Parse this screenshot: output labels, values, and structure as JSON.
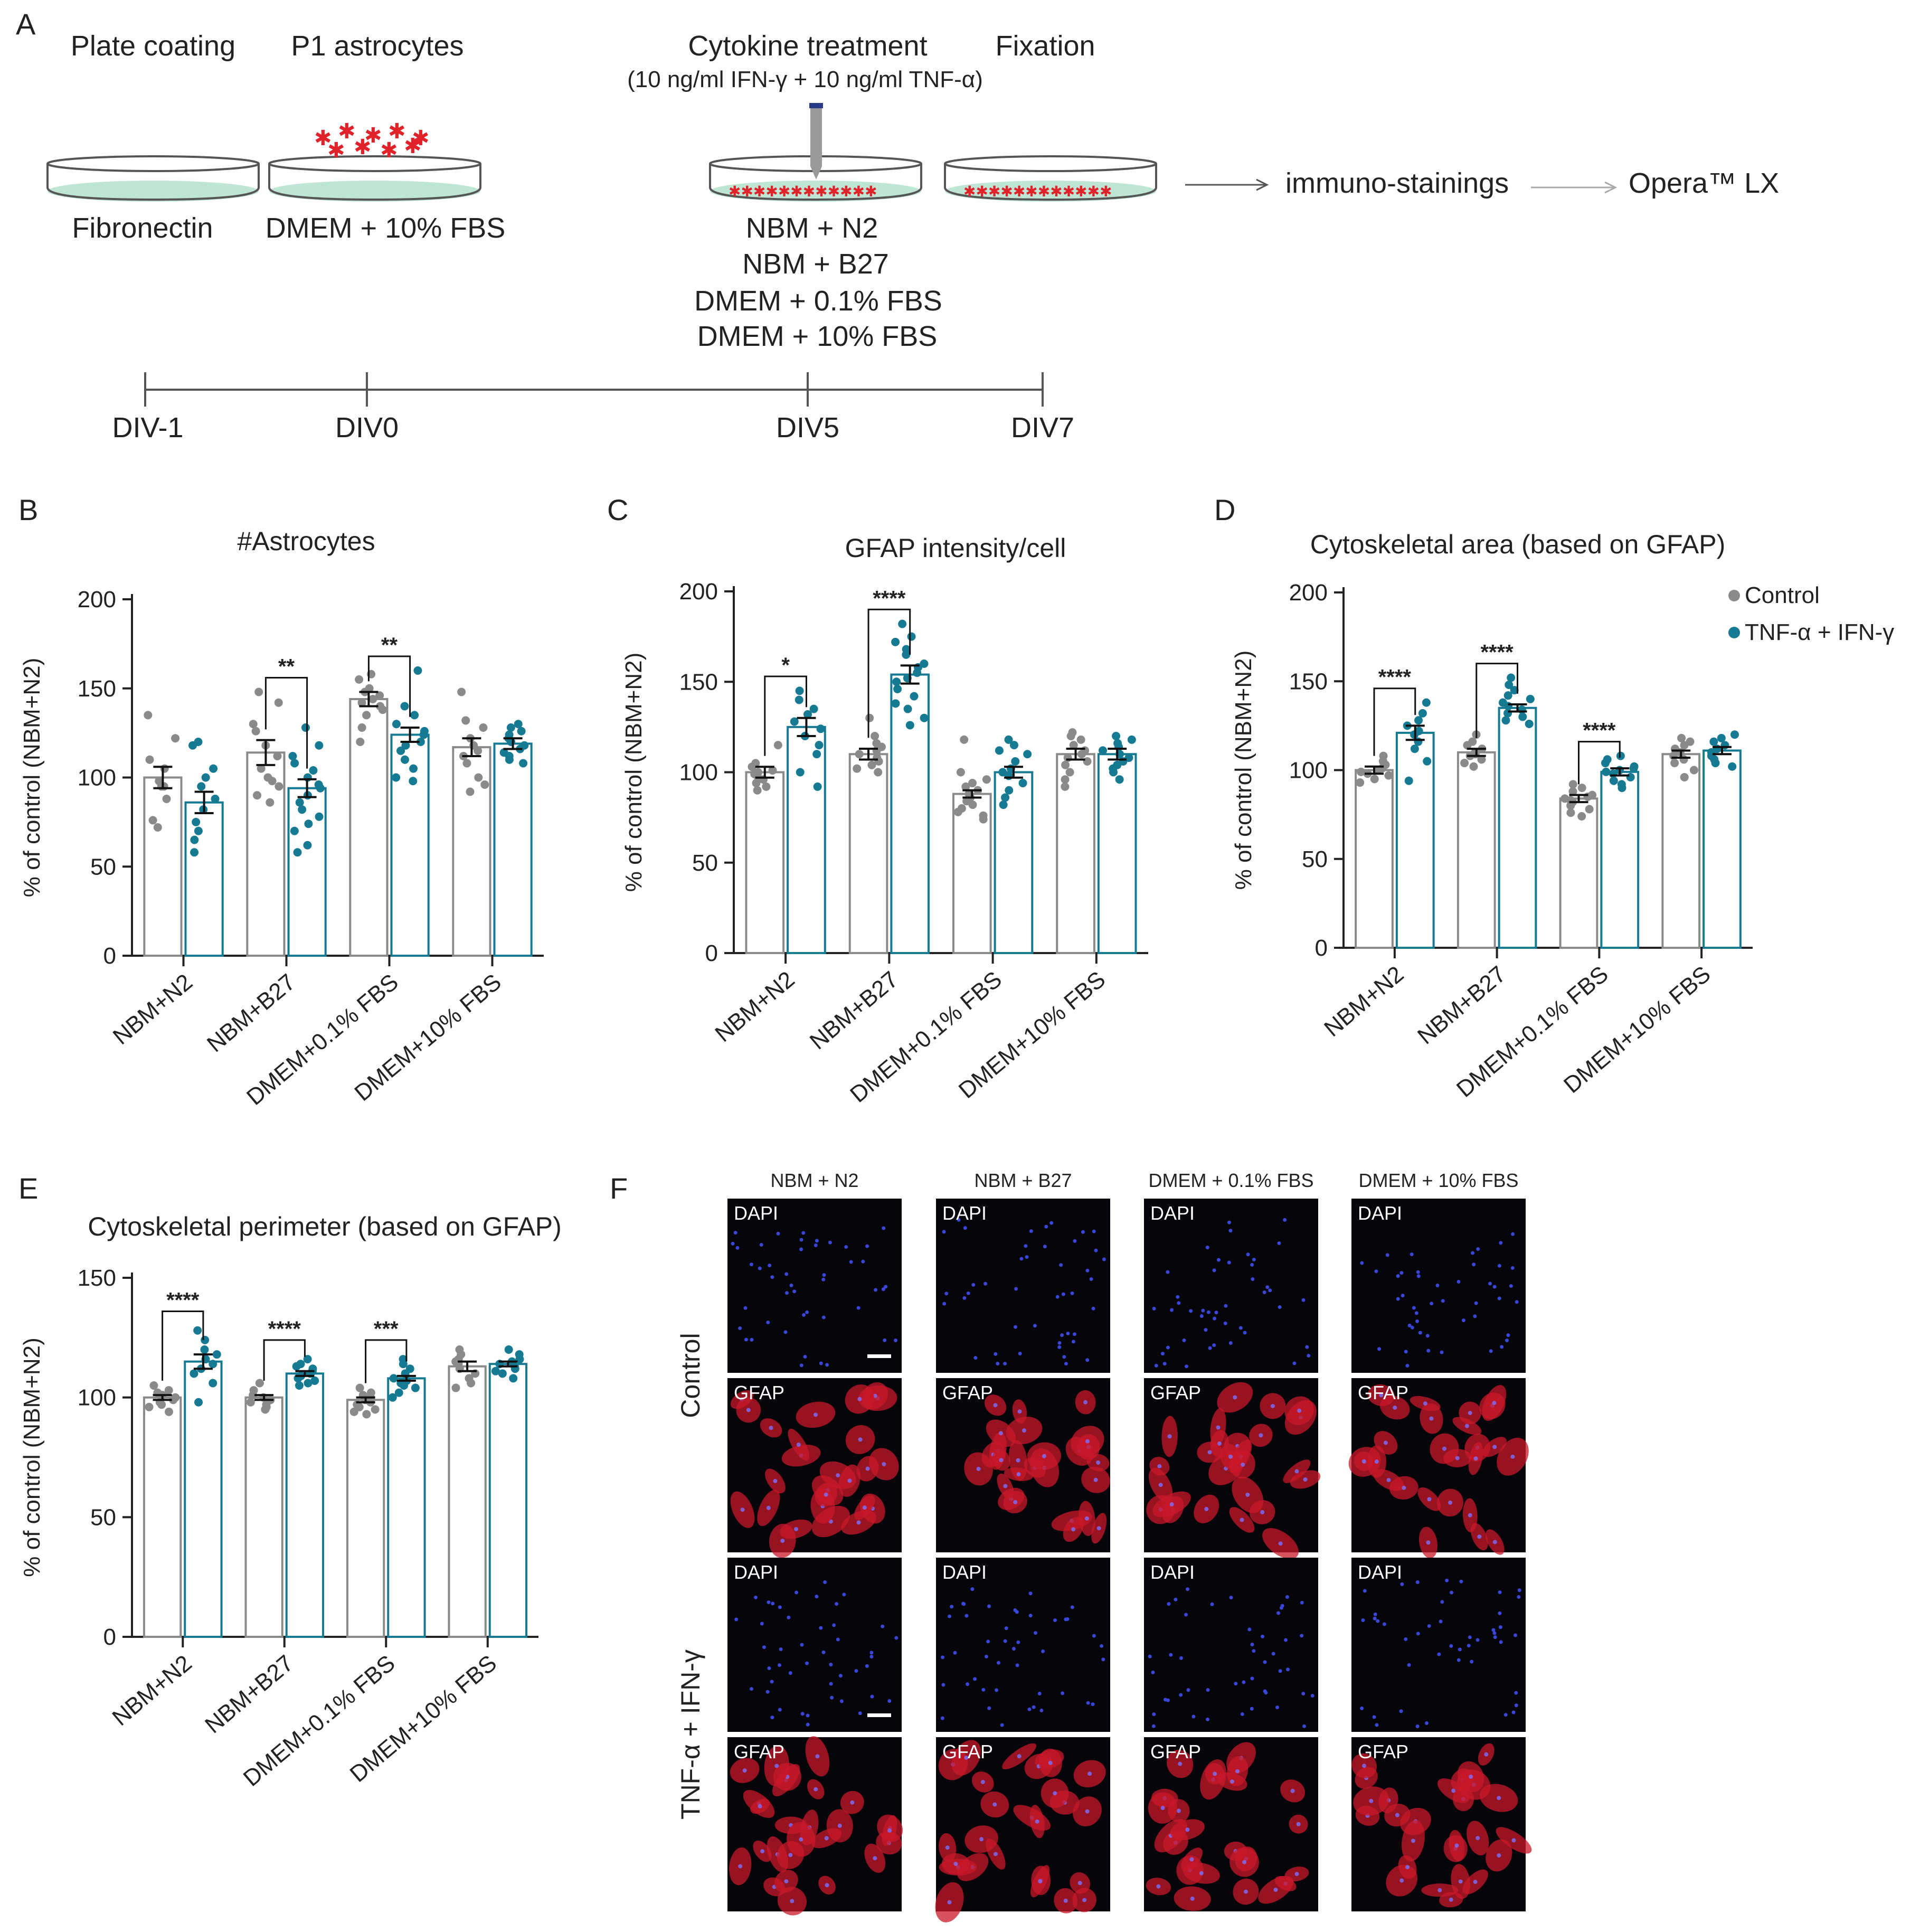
{
  "panel_labels": {
    "A": "A",
    "B": "B",
    "C": "C",
    "D": "D",
    "E": "E",
    "F": "F"
  },
  "schematic": {
    "steps": {
      "plate_coating": "Plate coating",
      "p1_astrocytes": "P1 astrocytes",
      "cytokine_treatment": "Cytokine treatment",
      "cytokine_detail": "(10 ng/ml IFN-γ + 10 ng/ml TNF-α)",
      "fixation": "Fixation"
    },
    "media": {
      "fibronectin": "Fibronectin",
      "dmem_10_fbs": "DMEM + 10% FBS",
      "list": [
        "NBM + N2",
        "NBM + B27",
        "DMEM + 0.1% FBS",
        "DMEM + 10% FBS"
      ]
    },
    "readouts": {
      "immuno": "immuno-stainings",
      "opera": "Opera™ LX"
    },
    "timeline": [
      "DIV-1",
      "DIV0",
      "DIV5",
      "DIV7"
    ],
    "colors": {
      "coating": "#bfe6d4",
      "cells": "#e0232b",
      "dish": "#555555"
    }
  },
  "legend": {
    "control": "Control",
    "treated": "TNF-α + IFN-γ"
  },
  "colors": {
    "control": "#8a8a8a",
    "treated": "#167a93",
    "axis": "#222222"
  },
  "chart_data": [
    {
      "panel": "B",
      "type": "bar",
      "title": "#Astrocytes",
      "ylabel": "% of control (NBM+N2)",
      "ylim": [
        0,
        200
      ],
      "yticks": [
        0,
        50,
        100,
        150,
        200
      ],
      "categories": [
        "NBM+N2",
        "NBM+B27",
        "DMEM+0.1% FBS",
        "DMEM+10% FBS"
      ],
      "series": [
        {
          "name": "Control",
          "values": [
            100,
            114,
            144,
            117
          ],
          "sem": [
            6,
            7,
            4,
            5
          ],
          "points": [
            [
              135,
              122,
              110,
              105,
              98,
              95,
              88,
              76,
              72,
              95
            ],
            [
              148,
              142,
              130,
              126,
              118,
              112,
              105,
              100,
              98,
              95,
              90,
              86
            ],
            [
              158,
              155,
              150,
              148,
              146,
              144,
              142,
              140,
              138,
              135,
              128,
              120
            ],
            [
              148,
              132,
              128,
              122,
              118,
              115,
              112,
              108,
              100,
              96,
              92
            ]
          ]
        },
        {
          "name": "TNF-α + IFN-γ",
          "values": [
            86,
            94,
            124,
            119
          ],
          "sem": [
            6,
            5,
            4,
            3
          ],
          "points": [
            [
              120,
              118,
              105,
              100,
              95,
              88,
              82,
              75,
              70,
              65,
              58
            ],
            [
              118,
              112,
              108,
              104,
              100,
              96,
              94,
              90,
              86,
              82,
              78,
              74,
              70,
              62,
              58,
              128
            ],
            [
              160,
              140,
              135,
              130,
              126,
              124,
              120,
              118,
              115,
              110,
              105,
              100,
              98
            ],
            [
              130,
              128,
              126,
              124,
              122,
              120,
              118,
              116,
              114,
              112,
              110,
              108
            ]
          ]
        }
      ],
      "significance": [
        {
          "category": "NBM+B27",
          "label": "**"
        },
        {
          "category": "DMEM+0.1% FBS",
          "label": "**"
        }
      ]
    },
    {
      "panel": "C",
      "type": "bar",
      "title": "GFAP intensity/cell",
      "ylabel": "% of control (NBM+N2)",
      "ylim": [
        0,
        200
      ],
      "yticks": [
        0,
        50,
        100,
        150,
        200
      ],
      "categories": [
        "NBM+N2",
        "NBM+B27",
        "DMEM+0.1% FBS",
        "DMEM+10% FBS"
      ],
      "series": [
        {
          "name": "Control",
          "values": [
            100,
            110,
            88,
            110
          ],
          "sem": [
            3,
            3,
            2,
            3
          ],
          "points": [
            [
              115,
              105,
              103,
              101,
              100,
              99,
              98,
              96,
              94,
              92,
              90
            ],
            [
              130,
              120,
              116,
              114,
              112,
              110,
              108,
              106,
              104,
              102,
              100
            ],
            [
              118,
              100,
              96,
              94,
              92,
              90,
              88,
              86,
              84,
              82,
              80,
              78,
              76,
              74
            ],
            [
              122,
              120,
              118,
              115,
              112,
              110,
              108,
              106,
              104,
              100,
              96,
              92
            ]
          ]
        },
        {
          "name": "TNF-α + IFN-γ",
          "values": [
            125,
            154,
            100,
            110
          ],
          "sem": [
            5,
            5,
            3,
            3
          ],
          "points": [
            [
              145,
              140,
              135,
              132,
              128,
              124,
              120,
              115,
              110,
              100,
              92
            ],
            [
              182,
              175,
              172,
              168,
              165,
              160,
              158,
              155,
              152,
              150,
              146,
              142,
              138,
              135,
              130,
              126
            ],
            [
              118,
              115,
              112,
              110,
              106,
              102,
              100,
              98,
              94,
              90,
              86,
              82
            ],
            [
              120,
              118,
              116,
              114,
              112,
              110,
              108,
              106,
              104,
              102,
              100,
              96
            ]
          ]
        }
      ],
      "significance": [
        {
          "category": "NBM+N2",
          "label": "*"
        },
        {
          "category": "NBM+B27",
          "label": "****"
        }
      ]
    },
    {
      "panel": "D",
      "type": "bar",
      "title": "Cytoskeletal area (based on GFAP)",
      "ylabel": "% of control (NBM+N2)",
      "ylim": [
        0,
        200
      ],
      "yticks": [
        0,
        50,
        100,
        150,
        200
      ],
      "categories": [
        "NBM+N2",
        "NBM+B27",
        "DMEM+0.1% FBS",
        "DMEM+10% FBS"
      ],
      "series": [
        {
          "name": "Control",
          "values": [
            100,
            110,
            84,
            109
          ],
          "sem": [
            2,
            2,
            2,
            2
          ],
          "points": [
            [
              108,
              105,
              103,
              101,
              100,
              99,
              98,
              97,
              95,
              93
            ],
            [
              120,
              116,
              114,
              112,
              110,
              109,
              108,
              106,
              104,
              102
            ],
            [
              92,
              90,
              88,
              86,
              85,
              84,
              83,
              82,
              80,
              78,
              76,
              74
            ],
            [
              118,
              116,
              114,
              112,
              110,
              108,
              106,
              104,
              100,
              96
            ]
          ]
        },
        {
          "name": "TNF-α + IFN-γ",
          "values": [
            121,
            135,
            99,
            111
          ],
          "sem": [
            4,
            2,
            2,
            2
          ],
          "points": [
            [
              138,
              132,
              128,
              125,
              122,
              120,
              116,
              112,
              105,
              94
            ],
            [
              152,
              148,
              145,
              142,
              140,
              138,
              136,
              134,
              132,
              130,
              128,
              126
            ],
            [
              108,
              106,
              104,
              102,
              101,
              100,
              99,
              98,
              96,
              94,
              92,
              90
            ],
            [
              120,
              118,
              116,
              114,
              112,
              110,
              108,
              106,
              104,
              102
            ]
          ]
        }
      ],
      "significance": [
        {
          "category": "NBM+N2",
          "label": "****"
        },
        {
          "category": "NBM+B27",
          "label": "****"
        },
        {
          "category": "DMEM+0.1% FBS",
          "label": "****"
        }
      ],
      "legend_position": "top-right"
    },
    {
      "panel": "E",
      "type": "bar",
      "title": "Cytoskeletal perimeter (based on GFAP)",
      "ylabel": "% of control (NBM+N2)",
      "ylim": [
        0,
        150
      ],
      "yticks": [
        0,
        50,
        100,
        150
      ],
      "categories": [
        "NBM+N2",
        "NBM+B27",
        "DMEM+0.1% FBS",
        "DMEM+10% FBS"
      ],
      "series": [
        {
          "name": "Control",
          "values": [
            100,
            100,
            99,
            113
          ],
          "sem": [
            1,
            1,
            1,
            2
          ],
          "points": [
            [
              105,
              103,
              102,
              101,
              100,
              99,
              98,
              97,
              96,
              94
            ],
            [
              106,
              103,
              101,
              100,
              99,
              98,
              97,
              96,
              95
            ],
            [
              104,
              102,
              101,
              100,
              99,
              98,
              97,
              96,
              95,
              94,
              93
            ],
            [
              120,
              118,
              116,
              115,
              114,
              112,
              110,
              108,
              106,
              104
            ]
          ]
        },
        {
          "name": "TNF-α + IFN-γ",
          "values": [
            115,
            110,
            108,
            114
          ],
          "sem": [
            3,
            1,
            1,
            1
          ],
          "points": [
            [
              128,
              124,
              120,
              118,
              116,
              114,
              112,
              110,
              106,
              98
            ],
            [
              116,
              114,
              113,
              112,
              111,
              110,
              109,
              108,
              107,
              106,
              105
            ],
            [
              116,
              114,
              112,
              110,
              108,
              107,
              106,
              105,
              104,
              102,
              100
            ],
            [
              120,
              118,
              116,
              115,
              114,
              113,
              112,
              111,
              110,
              108
            ]
          ]
        }
      ],
      "significance": [
        {
          "category": "NBM+N2",
          "label": "****"
        },
        {
          "category": "NBM+B27",
          "label": "****"
        },
        {
          "category": "DMEM+0.1% FBS",
          "label": "***"
        }
      ]
    }
  ],
  "microscopy": {
    "columns": [
      "NBM + N2",
      "NBM + B27",
      "DMEM + 0.1% FBS",
      "DMEM + 10% FBS"
    ],
    "rows": [
      "Control",
      "TNF-α + IFN-γ"
    ],
    "channels": [
      "DAPI",
      "GFAP"
    ]
  }
}
